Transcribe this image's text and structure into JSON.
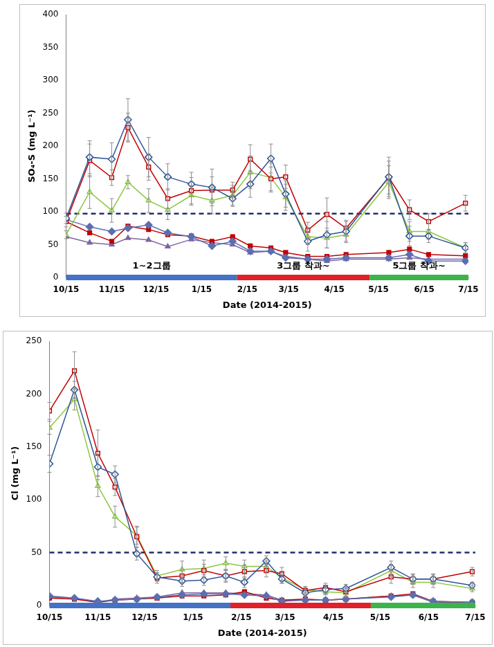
{
  "chart_data": [
    {
      "type": "line",
      "y_label": "SO₄-S (mg L⁻¹)",
      "x_label": "Date (2014-2015)",
      "x": [
        0,
        16,
        31,
        42,
        56,
        69,
        85,
        99,
        113,
        125,
        139,
        149,
        164,
        177,
        190,
        219,
        233,
        246,
        271
      ],
      "xlim": [
        0,
        273
      ],
      "xticks": [
        {
          "value": 0,
          "label": "10/15"
        },
        {
          "value": 31,
          "label": "11/15"
        },
        {
          "value": 61,
          "label": "12/15"
        },
        {
          "value": 92,
          "label": "1/15"
        },
        {
          "value": 123,
          "label": "2/15"
        },
        {
          "value": 151,
          "label": "3/15"
        },
        {
          "value": 182,
          "label": "4/15"
        },
        {
          "value": 212,
          "label": "5/15"
        },
        {
          "value": 243,
          "label": "6/15"
        },
        {
          "value": 273,
          "label": "7/15"
        }
      ],
      "ylim": [
        0,
        400
      ],
      "yticks": [
        0,
        50,
        100,
        150,
        200,
        250,
        300,
        350,
        400
      ],
      "grid": false,
      "series": [
        {
          "color": "#2f5597",
          "marker": "diamond-open",
          "line_style": "solid",
          "values": [
            90,
            183,
            180,
            240,
            183,
            153,
            142,
            137,
            120,
            142,
            181,
            127,
            55,
            65,
            70,
            153,
            63,
            63,
            45
          ],
          "errors": [
            8,
            25,
            25,
            32,
            30,
            20,
            18,
            28,
            12,
            20,
            22,
            20,
            15,
            20,
            15,
            30,
            15,
            10,
            8
          ]
        },
        {
          "color": "#c00000",
          "marker": "square-open",
          "line_style": "solid",
          "values": [
            85,
            178,
            152,
            228,
            168,
            120,
            132,
            133,
            133,
            180,
            150,
            153,
            72,
            96,
            75,
            152,
            103,
            85,
            113
          ],
          "errors": [
            8,
            25,
            12,
            22,
            20,
            15,
            20,
            20,
            12,
            22,
            18,
            18,
            12,
            25,
            12,
            25,
            15,
            12,
            12
          ]
        },
        {
          "color": "#8cc63f",
          "marker": "triangle-open",
          "line_style": "solid",
          "values": [
            65,
            130,
            102,
            145,
            117,
            103,
            125,
            117,
            125,
            160,
            152,
            122,
            62,
            60,
            65,
            145,
            70,
            70,
            45
          ],
          "errors": [
            6,
            25,
            18,
            10,
            18,
            15,
            15,
            20,
            15,
            25,
            22,
            20,
            12,
            15,
            12,
            25,
            15,
            12,
            8
          ]
        },
        {
          "color": "#5b6fb0",
          "marker": "diamond-filled",
          "line_style": "solid",
          "values": [
            88,
            77,
            70,
            75,
            80,
            68,
            62,
            48,
            55,
            40,
            40,
            30,
            28,
            28,
            30,
            30,
            35,
            25,
            25
          ]
        },
        {
          "color": "#c00000",
          "marker": "square-filled",
          "line_style": "solid",
          "values": [
            85,
            68,
            55,
            78,
            73,
            65,
            63,
            55,
            62,
            48,
            45,
            38,
            32,
            32,
            35,
            38,
            43,
            35,
            33
          ]
        },
        {
          "color": "#8064a2",
          "marker": "triangle-filled",
          "line_style": "solid",
          "values": [
            62,
            53,
            50,
            60,
            57,
            47,
            58,
            53,
            50,
            38,
            40,
            32,
            28,
            25,
            28,
            28,
            30,
            28,
            28
          ]
        },
        {
          "color": "#1f2d6b",
          "marker": "none",
          "line_style": "dashed",
          "x": [
            0,
            273
          ],
          "values": [
            97,
            97
          ]
        }
      ],
      "periods": [
        {
          "start": 0,
          "end": 116,
          "color": "#4472c4",
          "label": "1~2그룹"
        },
        {
          "start": 116,
          "end": 206,
          "color": "#e0202a",
          "label": "3그룹 착과~"
        },
        {
          "start": 206,
          "end": 273,
          "color": "#3cb44b",
          "label": "5그룹 착과~"
        }
      ]
    },
    {
      "type": "line",
      "y_label": "Cl (mg L⁻¹)",
      "x_label": "Date (2014-2015)",
      "x": [
        0,
        16,
        31,
        42,
        56,
        69,
        85,
        99,
        113,
        125,
        139,
        149,
        164,
        177,
        190,
        219,
        233,
        246,
        271
      ],
      "xlim": [
        0,
        273
      ],
      "xticks": [
        {
          "value": 0,
          "label": "10/15"
        },
        {
          "value": 31,
          "label": "11/15"
        },
        {
          "value": 61,
          "label": "12/15"
        },
        {
          "value": 92,
          "label": "1/15"
        },
        {
          "value": 123,
          "label": "2/15"
        },
        {
          "value": 151,
          "label": "3/15"
        },
        {
          "value": 182,
          "label": "4/15"
        },
        {
          "value": 212,
          "label": "5/15"
        },
        {
          "value": 243,
          "label": "6/15"
        },
        {
          "value": 273,
          "label": "7/15"
        }
      ],
      "ylim": [
        0,
        250
      ],
      "yticks": [
        0,
        50,
        100,
        150,
        200,
        250
      ],
      "grid": false,
      "series": [
        {
          "color": "#2f5597",
          "marker": "diamond-open",
          "line_style": "solid",
          "values": [
            134,
            204,
            131,
            124,
            49,
            27,
            23,
            24,
            28,
            22,
            42,
            25,
            12,
            15,
            16,
            36,
            25,
            25,
            19
          ],
          "errors": [
            8,
            8,
            12,
            8,
            6,
            4,
            5,
            5,
            5,
            5,
            5,
            4,
            3,
            4,
            4,
            6,
            4,
            4,
            3
          ]
        },
        {
          "color": "#c00000",
          "marker": "square-open",
          "line_style": "solid",
          "values": [
            184,
            222,
            144,
            112,
            65,
            26,
            28,
            33,
            28,
            32,
            33,
            30,
            14,
            17,
            13,
            27,
            25,
            25,
            32
          ],
          "errors": [
            8,
            18,
            22,
            8,
            10,
            5,
            6,
            6,
            6,
            6,
            6,
            6,
            3,
            4,
            4,
            6,
            5,
            5,
            4
          ]
        },
        {
          "color": "#8cc63f",
          "marker": "triangle-open",
          "line_style": "solid",
          "values": [
            168,
            195,
            113,
            84,
            66,
            28,
            34,
            35,
            40,
            37,
            37,
            26,
            15,
            13,
            12,
            33,
            22,
            22,
            16
          ],
          "errors": [
            6,
            10,
            10,
            10,
            8,
            5,
            8,
            8,
            6,
            6,
            5,
            5,
            3,
            3,
            4,
            6,
            5,
            5,
            3
          ]
        },
        {
          "color": "#5b6fb0",
          "marker": "diamond-filled",
          "line_style": "solid",
          "values": [
            9,
            7,
            4,
            5,
            6,
            8,
            10,
            11,
            11,
            10,
            9,
            4,
            5,
            5,
            6,
            8,
            10,
            4,
            3
          ]
        },
        {
          "color": "#c00000",
          "marker": "square-filled",
          "line_style": "solid",
          "values": [
            7,
            6,
            3,
            5,
            6,
            7,
            9,
            9,
            10,
            13,
            7,
            5,
            6,
            5,
            6,
            9,
            11,
            4,
            3
          ]
        },
        {
          "color": "#8064a2",
          "marker": "triangle-filled",
          "line_style": "solid",
          "values": [
            8,
            7,
            3,
            6,
            7,
            8,
            12,
            12,
            12,
            11,
            10,
            5,
            5,
            5,
            6,
            9,
            10,
            3,
            3
          ]
        },
        {
          "color": "#1f2d6b",
          "marker": "none",
          "line_style": "dashed",
          "x": [
            0,
            273
          ],
          "values": [
            50,
            50
          ]
        }
      ],
      "periods": [
        {
          "start": 0,
          "end": 116,
          "color": "#4472c4"
        },
        {
          "start": 116,
          "end": 206,
          "color": "#e0202a"
        },
        {
          "start": 206,
          "end": 273,
          "color": "#3cb44b"
        }
      ]
    }
  ]
}
